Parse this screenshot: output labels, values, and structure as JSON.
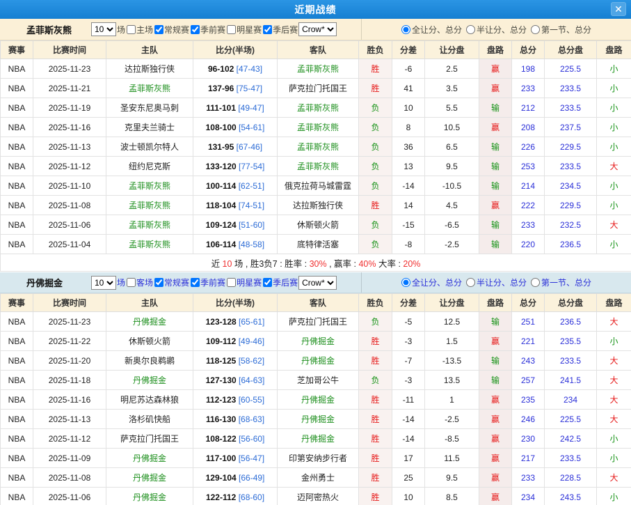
{
  "modal": {
    "title": "近期战绩",
    "close_glyph": "✕"
  },
  "colors": {
    "accent_bar": "#157fd2",
    "cream": "#fbf0d7",
    "light_blue": "#d8e8ee",
    "win_red": "#e61717",
    "lose_green": "#149114",
    "total_blue": "#2a2fd8",
    "featured_green": "#1d8f1d",
    "half_blue": "#2b6bd6"
  },
  "value_color_map": {
    "胜": "red",
    "负": "green",
    "赢": "red",
    "输": "green",
    "大": "red",
    "小": "green"
  },
  "panels": [
    {
      "team": "孟菲斯灰熊",
      "bar_style": "cream",
      "games_select": "10",
      "games_suffix": "场",
      "filters": [
        {
          "label": "主场",
          "checked": false
        },
        {
          "label": "常规赛",
          "checked": true
        },
        {
          "label": "季前赛",
          "checked": true
        },
        {
          "label": "明星赛",
          "checked": false
        },
        {
          "label": "季后赛",
          "checked": true
        }
      ],
      "odds_select": "Crow*",
      "radios": [
        {
          "label": "全让分、总分",
          "selected": true
        },
        {
          "label": "半让分、总分",
          "selected": false
        },
        {
          "label": "第一节、总分",
          "selected": false
        }
      ],
      "columns": [
        "赛事",
        "比赛时间",
        "主队",
        "比分(半场)",
        "客队",
        "胜负",
        "分差",
        "让分盘",
        "盘路",
        "总分",
        "总分盘",
        "盘路"
      ],
      "rows": [
        {
          "league": "NBA",
          "date": "2025-11-23",
          "home": "达拉斯独行侠",
          "score": "96-102",
          "half": "[47-43]",
          "away": "孟菲斯灰熊",
          "result": "胜",
          "diff": "-6",
          "handicap": "2.5",
          "handicap_result": "赢",
          "total": "198",
          "total_line": "225.5",
          "ou": "小"
        },
        {
          "league": "NBA",
          "date": "2025-11-21",
          "home": "孟菲斯灰熊",
          "score": "137-96",
          "half": "[75-47]",
          "away": "萨克拉门托国王",
          "result": "胜",
          "diff": "41",
          "handicap": "3.5",
          "handicap_result": "赢",
          "total": "233",
          "total_line": "233.5",
          "ou": "小"
        },
        {
          "league": "NBA",
          "date": "2025-11-19",
          "home": "圣安东尼奥马刺",
          "score": "111-101",
          "half": "[49-47]",
          "away": "孟菲斯灰熊",
          "result": "负",
          "diff": "10",
          "handicap": "5.5",
          "handicap_result": "输",
          "total": "212",
          "total_line": "233.5",
          "ou": "小"
        },
        {
          "league": "NBA",
          "date": "2025-11-16",
          "home": "克里夫兰骑士",
          "score": "108-100",
          "half": "[54-61]",
          "away": "孟菲斯灰熊",
          "result": "负",
          "diff": "8",
          "handicap": "10.5",
          "handicap_result": "赢",
          "total": "208",
          "total_line": "237.5",
          "ou": "小"
        },
        {
          "league": "NBA",
          "date": "2025-11-13",
          "home": "波士顿凯尔特人",
          "score": "131-95",
          "half": "[67-46]",
          "away": "孟菲斯灰熊",
          "result": "负",
          "diff": "36",
          "handicap": "6.5",
          "handicap_result": "输",
          "total": "226",
          "total_line": "229.5",
          "ou": "小"
        },
        {
          "league": "NBA",
          "date": "2025-11-12",
          "home": "纽约尼克斯",
          "score": "133-120",
          "half": "[77-54]",
          "away": "孟菲斯灰熊",
          "result": "负",
          "diff": "13",
          "handicap": "9.5",
          "handicap_result": "输",
          "total": "253",
          "total_line": "233.5",
          "ou": "大"
        },
        {
          "league": "NBA",
          "date": "2025-11-10",
          "home": "孟菲斯灰熊",
          "score": "100-114",
          "half": "[62-51]",
          "away": "俄克拉荷马城雷霆",
          "result": "负",
          "diff": "-14",
          "handicap": "-10.5",
          "handicap_result": "输",
          "total": "214",
          "total_line": "234.5",
          "ou": "小"
        },
        {
          "league": "NBA",
          "date": "2025-11-08",
          "home": "孟菲斯灰熊",
          "score": "118-104",
          "half": "[74-51]",
          "away": "达拉斯独行侠",
          "result": "胜",
          "diff": "14",
          "handicap": "4.5",
          "handicap_result": "赢",
          "total": "222",
          "total_line": "229.5",
          "ou": "小"
        },
        {
          "league": "NBA",
          "date": "2025-11-06",
          "home": "孟菲斯灰熊",
          "score": "109-124",
          "half": "[51-60]",
          "away": "休斯顿火箭",
          "result": "负",
          "diff": "-15",
          "handicap": "-6.5",
          "handicap_result": "输",
          "total": "233",
          "total_line": "232.5",
          "ou": "大"
        },
        {
          "league": "NBA",
          "date": "2025-11-04",
          "home": "孟菲斯灰熊",
          "score": "106-114",
          "half": "[48-58]",
          "away": "底特律活塞",
          "result": "负",
          "diff": "-8",
          "handicap": "-2.5",
          "handicap_result": "输",
          "total": "220",
          "total_line": "236.5",
          "ou": "小"
        }
      ],
      "summary": [
        {
          "text": "近 ",
          "red": false
        },
        {
          "text": "10",
          "red": true
        },
        {
          "text": " 场 , 胜3负7 : 胜率 : ",
          "red": false
        },
        {
          "text": "30%",
          "red": true
        },
        {
          "text": " , 赢率 : ",
          "red": false
        },
        {
          "text": "40%",
          "red": true
        },
        {
          "text": " 大率 : ",
          "red": false
        },
        {
          "text": "20%",
          "red": true
        }
      ]
    },
    {
      "team": "丹佛掘金",
      "bar_style": "blue",
      "games_select": "10",
      "games_suffix": "场",
      "filters": [
        {
          "label": "客场",
          "checked": false
        },
        {
          "label": "常规赛",
          "checked": true
        },
        {
          "label": "季前赛",
          "checked": true
        },
        {
          "label": "明星赛",
          "checked": false
        },
        {
          "label": "季后赛",
          "checked": true
        }
      ],
      "odds_select": "Crow*",
      "radios": [
        {
          "label": "全让分、总分",
          "selected": true
        },
        {
          "label": "半让分、总分",
          "selected": false
        },
        {
          "label": "第一节、总分",
          "selected": false
        }
      ],
      "columns": [
        "赛事",
        "比赛时间",
        "主队",
        "比分(半场)",
        "客队",
        "胜负",
        "分差",
        "让分盘",
        "盘路",
        "总分",
        "总分盘",
        "盘路"
      ],
      "rows": [
        {
          "league": "NBA",
          "date": "2025-11-23",
          "home": "丹佛掘金",
          "score": "123-128",
          "half": "[65-61]",
          "away": "萨克拉门托国王",
          "result": "负",
          "diff": "-5",
          "handicap": "12.5",
          "handicap_result": "输",
          "total": "251",
          "total_line": "236.5",
          "ou": "大"
        },
        {
          "league": "NBA",
          "date": "2025-11-22",
          "home": "休斯顿火箭",
          "score": "109-112",
          "half": "[49-46]",
          "away": "丹佛掘金",
          "result": "胜",
          "diff": "-3",
          "handicap": "1.5",
          "handicap_result": "赢",
          "total": "221",
          "total_line": "235.5",
          "ou": "小"
        },
        {
          "league": "NBA",
          "date": "2025-11-20",
          "home": "新奥尔良鹈鹕",
          "score": "118-125",
          "half": "[58-62]",
          "away": "丹佛掘金",
          "result": "胜",
          "diff": "-7",
          "handicap": "-13.5",
          "handicap_result": "输",
          "total": "243",
          "total_line": "233.5",
          "ou": "大"
        },
        {
          "league": "NBA",
          "date": "2025-11-18",
          "home": "丹佛掘金",
          "score": "127-130",
          "half": "[64-63]",
          "away": "芝加哥公牛",
          "result": "负",
          "diff": "-3",
          "handicap": "13.5",
          "handicap_result": "输",
          "total": "257",
          "total_line": "241.5",
          "ou": "大"
        },
        {
          "league": "NBA",
          "date": "2025-11-16",
          "home": "明尼苏达森林狼",
          "score": "112-123",
          "half": "[60-55]",
          "away": "丹佛掘金",
          "result": "胜",
          "diff": "-11",
          "handicap": "1",
          "handicap_result": "赢",
          "total": "235",
          "total_line": "234",
          "ou": "大"
        },
        {
          "league": "NBA",
          "date": "2025-11-13",
          "home": "洛杉矶快船",
          "score": "116-130",
          "half": "[68-63]",
          "away": "丹佛掘金",
          "result": "胜",
          "diff": "-14",
          "handicap": "-2.5",
          "handicap_result": "赢",
          "total": "246",
          "total_line": "225.5",
          "ou": "大"
        },
        {
          "league": "NBA",
          "date": "2025-11-12",
          "home": "萨克拉门托国王",
          "score": "108-122",
          "half": "[56-60]",
          "away": "丹佛掘金",
          "result": "胜",
          "diff": "-14",
          "handicap": "-8.5",
          "handicap_result": "赢",
          "total": "230",
          "total_line": "242.5",
          "ou": "小"
        },
        {
          "league": "NBA",
          "date": "2025-11-09",
          "home": "丹佛掘金",
          "score": "117-100",
          "half": "[56-47]",
          "away": "印第安纳步行者",
          "result": "胜",
          "diff": "17",
          "handicap": "11.5",
          "handicap_result": "赢",
          "total": "217",
          "total_line": "233.5",
          "ou": "小"
        },
        {
          "league": "NBA",
          "date": "2025-11-08",
          "home": "丹佛掘金",
          "score": "129-104",
          "half": "[66-49]",
          "away": "金州勇士",
          "result": "胜",
          "diff": "25",
          "handicap": "9.5",
          "handicap_result": "赢",
          "total": "233",
          "total_line": "228.5",
          "ou": "大"
        },
        {
          "league": "NBA",
          "date": "2025-11-06",
          "home": "丹佛掘金",
          "score": "122-112",
          "half": "[68-60]",
          "away": "迈阿密热火",
          "result": "胜",
          "diff": "10",
          "handicap": "8.5",
          "handicap_result": "赢",
          "total": "234",
          "total_line": "243.5",
          "ou": "小"
        }
      ],
      "summary": null
    }
  ]
}
